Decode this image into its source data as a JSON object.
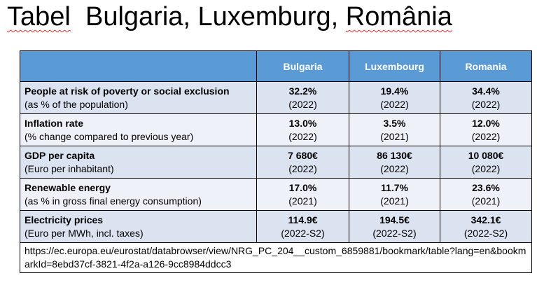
{
  "title": {
    "word_tabel": "Tabel",
    "countries": "Bulgaria, Luxemburg,",
    "word_romania": "România"
  },
  "table": {
    "columns": [
      "Bulgaria",
      "Luxembourg",
      "Romania"
    ],
    "rows": [
      {
        "name": "People at risk of poverty or social exclusion",
        "unit": "(as % of the population)",
        "values": [
          {
            "value": "32.2%",
            "year": "(2022)"
          },
          {
            "value": "19.4%",
            "year": "(2022)"
          },
          {
            "value": "34.4%",
            "year": "(2022)"
          }
        ]
      },
      {
        "name": "Inflation rate",
        "unit": "(% change compared to previous year)",
        "values": [
          {
            "value": "13.0%",
            "year": "(2022)"
          },
          {
            "value": "3.5%",
            "year": "(2021)"
          },
          {
            "value": "12.0%",
            "year": "(2022)"
          }
        ]
      },
      {
        "name": "GDP per capita",
        "unit": "(Euro per inhabitant)",
        "values": [
          {
            "value": "7 680€",
            "year": "(2022)"
          },
          {
            "value": "86 130€",
            "year": "(2022)"
          },
          {
            "value": "10 080€",
            "year": "(2022)"
          }
        ]
      },
      {
        "name": "Renewable energy",
        "unit": "(as % in gross final energy consumption)",
        "values": [
          {
            "value": "17.0%",
            "year": "(2021)"
          },
          {
            "value": "11.7%",
            "year": "(2021)"
          },
          {
            "value": "23.6%",
            "year": "(2021)"
          }
        ]
      },
      {
        "name": "Electricity prices",
        "unit": "(Euro per MWh, incl. taxes)",
        "values": [
          {
            "value": "114.9€",
            "year": "(2022-S2)"
          },
          {
            "value": "194.5€",
            "year": "(2022-S2)"
          },
          {
            "value": "342.1€",
            "year": "(2022-S2)"
          }
        ]
      }
    ],
    "source_url": "https://ec.europa.eu/eurostat/databrowser/view/NRG_PC_204__custom_6859881/bookmark/table?lang=en&bookmarkId=8ebd37cf-3821-4f2a-a126-9cc8984ddcc3"
  },
  "colors": {
    "header_bg": "#5b9bd5",
    "row_shaded": "#dbe3f1",
    "row_plain": "#eef1f8",
    "spellcheck_underline": "#e03030"
  }
}
